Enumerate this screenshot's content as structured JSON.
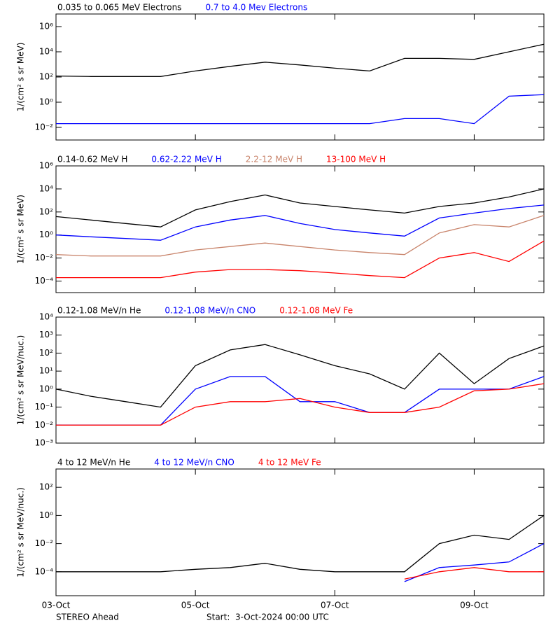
{
  "chart_data": [
    {
      "type": "line",
      "log_y": true,
      "y_label": "1/(cm² s sr MeV)",
      "x": [
        "2024-10-03 00:00",
        "2024-10-03 12:00",
        "2024-10-04 00:00",
        "2024-10-04 12:00",
        "2024-10-05 00:00",
        "2024-10-05 12:00",
        "2024-10-06 00:00",
        "2024-10-06 12:00",
        "2024-10-07 00:00",
        "2024-10-07 12:00",
        "2024-10-08 00:00",
        "2024-10-08 12:00",
        "2024-10-09 00:00",
        "2024-10-09 12:00",
        "2024-10-10 00:00"
      ],
      "xlim": [
        "2024-10-03 00:00",
        "2024-10-10 00:00"
      ],
      "ylim": [
        0.001,
        10000000
      ],
      "yticks": [
        {
          "value": 1000000,
          "label": "10⁶"
        },
        {
          "value": 10000,
          "label": "10⁴"
        },
        {
          "value": 100,
          "label": "10²"
        },
        {
          "value": 1,
          "label": "10⁰"
        },
        {
          "value": 0.01,
          "label": "10⁻²"
        }
      ],
      "series": [
        {
          "name": "0.035 to 0.065 MeV Electrons",
          "color": "#000000",
          "values": [
            120,
            110,
            110,
            110,
            300,
            700,
            1500,
            900,
            500,
            300,
            3000,
            3000,
            2500,
            10000,
            40000
          ]
        },
        {
          "name": "0.7 to 4.0 Mev Electrons",
          "color": "#0000ff",
          "values": [
            0.02,
            0.02,
            0.02,
            0.02,
            0.02,
            0.02,
            0.02,
            0.02,
            0.02,
            0.02,
            0.05,
            0.05,
            0.02,
            3,
            4
          ]
        }
      ]
    },
    {
      "type": "line",
      "log_y": true,
      "y_label": "1/(cm² s sr MeV)",
      "x": [
        "2024-10-03 00:00",
        "2024-10-03 12:00",
        "2024-10-04 00:00",
        "2024-10-04 12:00",
        "2024-10-05 00:00",
        "2024-10-05 12:00",
        "2024-10-06 00:00",
        "2024-10-06 12:00",
        "2024-10-07 00:00",
        "2024-10-07 12:00",
        "2024-10-08 00:00",
        "2024-10-08 12:00",
        "2024-10-09 00:00",
        "2024-10-09 12:00",
        "2024-10-10 00:00"
      ],
      "xlim": [
        "2024-10-03 00:00",
        "2024-10-10 00:00"
      ],
      "ylim": [
        1e-05,
        1000000
      ],
      "yticks": [
        {
          "value": 1000000,
          "label": "10⁶"
        },
        {
          "value": 10000,
          "label": "10⁴"
        },
        {
          "value": 100,
          "label": "10²"
        },
        {
          "value": 1,
          "label": "10⁰"
        },
        {
          "value": 0.01,
          "label": "10⁻²"
        },
        {
          "value": 0.0001,
          "label": "10⁻⁴"
        }
      ],
      "series": [
        {
          "name": "0.14-0.62 MeV H",
          "color": "#000000",
          "values": [
            40,
            20,
            10,
            5,
            150,
            800,
            3000,
            600,
            300,
            150,
            80,
            300,
            600,
            2000,
            10000
          ]
        },
        {
          "name": "0.62-2.22 MeV H",
          "color": "#0000ff",
          "values": [
            1,
            0.7,
            0.5,
            0.35,
            5,
            20,
            50,
            10,
            3,
            1.5,
            0.8,
            30,
            80,
            200,
            400
          ]
        },
        {
          "name": "2.2-12 MeV H",
          "color": "#c8836a",
          "values": [
            0.02,
            0.015,
            0.015,
            0.015,
            0.05,
            0.1,
            0.2,
            0.1,
            0.05,
            0.03,
            0.02,
            1.5,
            8,
            5,
            50
          ]
        },
        {
          "name": "13-100 MeV H",
          "color": "#ff0000",
          "values": [
            0.0002,
            0.0002,
            0.0002,
            0.0002,
            0.0006,
            0.001,
            0.001,
            0.0008,
            0.0005,
            0.0003,
            0.0002,
            0.01,
            0.03,
            0.005,
            0.3
          ]
        }
      ]
    },
    {
      "type": "line",
      "log_y": true,
      "y_label": "1/(cm² s sr MeV/nuc.)",
      "x": [
        "2024-10-03 00:00",
        "2024-10-03 12:00",
        "2024-10-04 00:00",
        "2024-10-04 12:00",
        "2024-10-05 00:00",
        "2024-10-05 12:00",
        "2024-10-06 00:00",
        "2024-10-06 12:00",
        "2024-10-07 00:00",
        "2024-10-07 12:00",
        "2024-10-08 00:00",
        "2024-10-08 12:00",
        "2024-10-09 00:00",
        "2024-10-09 12:00",
        "2024-10-10 00:00"
      ],
      "xlim": [
        "2024-10-03 00:00",
        "2024-10-10 00:00"
      ],
      "ylim": [
        0.001,
        10000
      ],
      "yticks": [
        {
          "value": 10000,
          "label": "10⁴"
        },
        {
          "value": 1000,
          "label": "10³"
        },
        {
          "value": 100,
          "label": "10²"
        },
        {
          "value": 10,
          "label": "10¹"
        },
        {
          "value": 1,
          "label": "10⁰"
        },
        {
          "value": 0.1,
          "label": "10⁻¹"
        },
        {
          "value": 0.01,
          "label": "10⁻²"
        },
        {
          "value": 0.001,
          "label": "10⁻³"
        }
      ],
      "series": [
        {
          "name": "0.12-1.08 MeV/n He",
          "color": "#000000",
          "values": [
            1,
            0.4,
            0.2,
            0.1,
            20,
            150,
            300,
            80,
            20,
            7,
            1,
            100,
            2,
            50,
            250
          ]
        },
        {
          "name": "0.12-1.08 MeV/n CNO",
          "color": "#0000ff",
          "values": [
            0.01,
            0.01,
            0.01,
            0.01,
            1,
            5,
            5,
            0.2,
            0.2,
            0.05,
            0.05,
            1,
            1,
            1,
            5
          ]
        },
        {
          "name": "0.12-1.08 MeV Fe",
          "color": "#ff0000",
          "values": [
            0.01,
            0.01,
            0.01,
            0.01,
            0.1,
            0.2,
            0.2,
            0.3,
            0.1,
            0.05,
            0.05,
            0.1,
            0.8,
            1,
            2
          ]
        }
      ]
    },
    {
      "type": "line",
      "log_y": true,
      "y_label": "1/(cm² s sr MeV/nuc.)",
      "x": [
        "2024-10-03 00:00",
        "2024-10-03 12:00",
        "2024-10-04 00:00",
        "2024-10-04 12:00",
        "2024-10-05 00:00",
        "2024-10-05 12:00",
        "2024-10-06 00:00",
        "2024-10-06 12:00",
        "2024-10-07 00:00",
        "2024-10-07 12:00",
        "2024-10-08 00:00",
        "2024-10-08 12:00",
        "2024-10-09 00:00",
        "2024-10-09 12:00",
        "2024-10-10 00:00"
      ],
      "xlim": [
        "2024-10-03 00:00",
        "2024-10-10 00:00"
      ],
      "xticks": [
        {
          "value": "2024-10-03 00:00",
          "label": "03-Oct"
        },
        {
          "value": "2024-10-05 00:00",
          "label": "05-Oct"
        },
        {
          "value": "2024-10-07 00:00",
          "label": "07-Oct"
        },
        {
          "value": "2024-10-09 00:00",
          "label": "09-Oct"
        }
      ],
      "ylim": [
        2e-06,
        2000
      ],
      "yticks": [
        {
          "value": 100,
          "label": "10²"
        },
        {
          "value": 1,
          "label": "10⁰"
        },
        {
          "value": 0.01,
          "label": "10⁻²"
        },
        {
          "value": 0.0001,
          "label": "10⁻⁴"
        }
      ],
      "series": [
        {
          "name": "4 to 12 MeV/n He",
          "color": "#000000",
          "values": [
            0.0001,
            0.0001,
            0.0001,
            0.0001,
            0.00015,
            0.0002,
            0.0004,
            0.00015,
            0.0001,
            0.0001,
            0.0001,
            0.01,
            0.04,
            0.02,
            1
          ]
        },
        {
          "name": "4 to 12 MeV/n CNO",
          "color": "#0000ff",
          "values": [
            null,
            null,
            null,
            null,
            null,
            null,
            null,
            null,
            null,
            null,
            2e-05,
            0.0002,
            0.0003,
            0.0005,
            0.01
          ]
        },
        {
          "name": "4 to 12 MeV Fe",
          "color": "#ff0000",
          "values": [
            null,
            null,
            null,
            null,
            null,
            null,
            null,
            null,
            null,
            null,
            3e-05,
            0.0001,
            0.0002,
            0.0001,
            0.0001
          ]
        }
      ]
    }
  ],
  "footer": {
    "spacecraft": "STEREO Ahead",
    "start": "Start:  3-Oct-2024 00:00 UTC"
  }
}
